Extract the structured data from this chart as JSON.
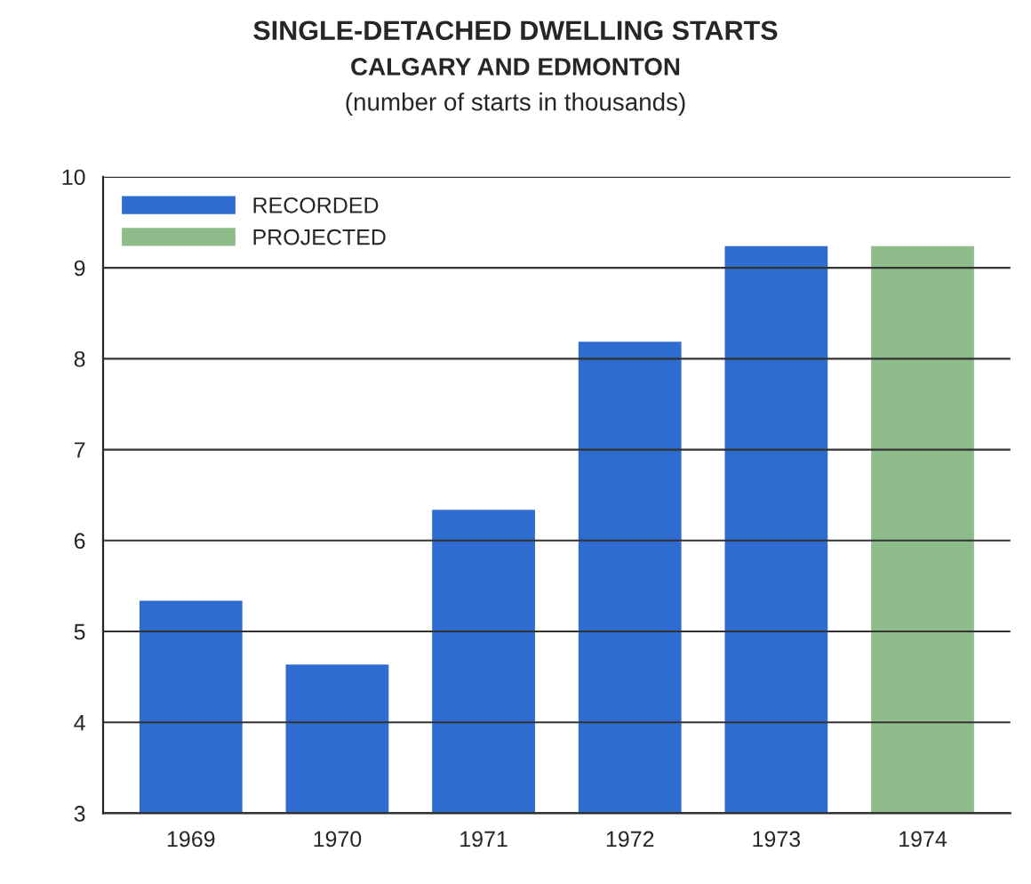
{
  "chart_data": {
    "type": "bar",
    "title": "SINGLE-DETACHED DWELLING STARTS",
    "subtitle": "CALGARY AND EDMONTON",
    "annotations": [
      "(number of starts in thousands)"
    ],
    "categories": [
      "1969",
      "1970",
      "1971",
      "1972",
      "1973",
      "1974"
    ],
    "series": [
      {
        "name": "RECORDED",
        "color": "#2f6cd0",
        "values": [
          5.35,
          4.65,
          6.35,
          8.2,
          9.25,
          null
        ]
      },
      {
        "name": "PROJECTED",
        "color": "#8fbc8b",
        "values": [
          null,
          null,
          null,
          null,
          null,
          9.25
        ]
      }
    ],
    "ylim": [
      3,
      10
    ],
    "yticks": [
      3,
      4,
      5,
      6,
      7,
      8,
      9,
      10
    ],
    "grid": "y",
    "legend": "top left"
  }
}
